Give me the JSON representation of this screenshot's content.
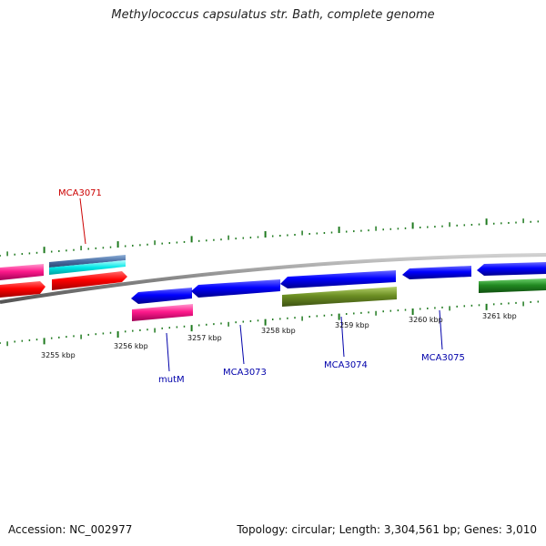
{
  "title": "Methylococcus capsulatus str. Bath, complete genome",
  "footer": {
    "accession": "Accession: NC_002977",
    "summary": "Topology: circular; Length: 3,304,561 bp; Genes: 3,010"
  },
  "axis": {
    "unit": "kbp",
    "tick_labels": [
      "3255 kbp",
      "3256 kbp",
      "3257 kbp",
      "3258 kbp",
      "3259 kbp",
      "3260 kbp",
      "3261 kbp"
    ]
  },
  "gene_labels": [
    {
      "id": "MCA3071",
      "text": "MCA3071",
      "color": "#cc0000"
    },
    {
      "id": "mutM",
      "text": "mutM",
      "color": "#0000aa"
    },
    {
      "id": "MCA3073",
      "text": "MCA3073",
      "color": "#0000aa"
    },
    {
      "id": "MCA3074",
      "text": "MCA3074",
      "color": "#0000aa"
    },
    {
      "id": "MCA3075",
      "text": "MCA3075",
      "color": "#0000aa"
    }
  ],
  "colors": {
    "backbone": "#888888",
    "tick": "#1f7a1f",
    "cds_forward": "#ff0000",
    "cds_reverse": "#0000ff",
    "rna_magenta": "#ff1a8c",
    "rna_cyan": "#00e6e6",
    "steelblue": "#4a6fa5",
    "olive": "#6b8e23",
    "green": "#228b22"
  }
}
